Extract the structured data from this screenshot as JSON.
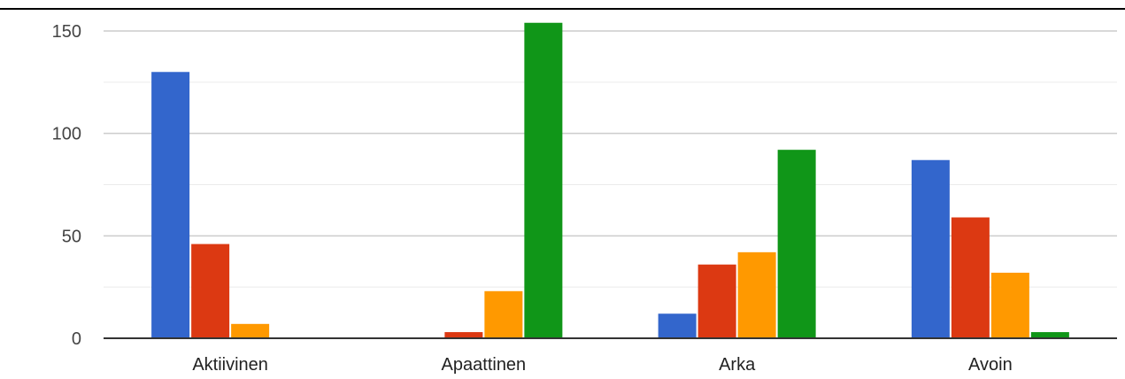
{
  "chart_data": {
    "type": "bar",
    "title": "",
    "xlabel": "",
    "ylabel": "",
    "categories": [
      "Aktiivinen",
      "Apaattinen",
      "Arka",
      "Avoin"
    ],
    "series": [
      {
        "color": "#3366cc",
        "values": [
          130,
          0,
          12,
          87
        ]
      },
      {
        "color": "#dc3912",
        "values": [
          46,
          3,
          36,
          59
        ]
      },
      {
        "color": "#ff9900",
        "values": [
          7,
          23,
          42,
          32
        ]
      },
      {
        "color": "#109618",
        "values": [
          0,
          154,
          92,
          3
        ]
      }
    ],
    "ylim": [
      0,
      150
    ],
    "yticks": [
      "0",
      "50",
      "100",
      "150"
    ],
    "grid": true,
    "legend": "none"
  }
}
